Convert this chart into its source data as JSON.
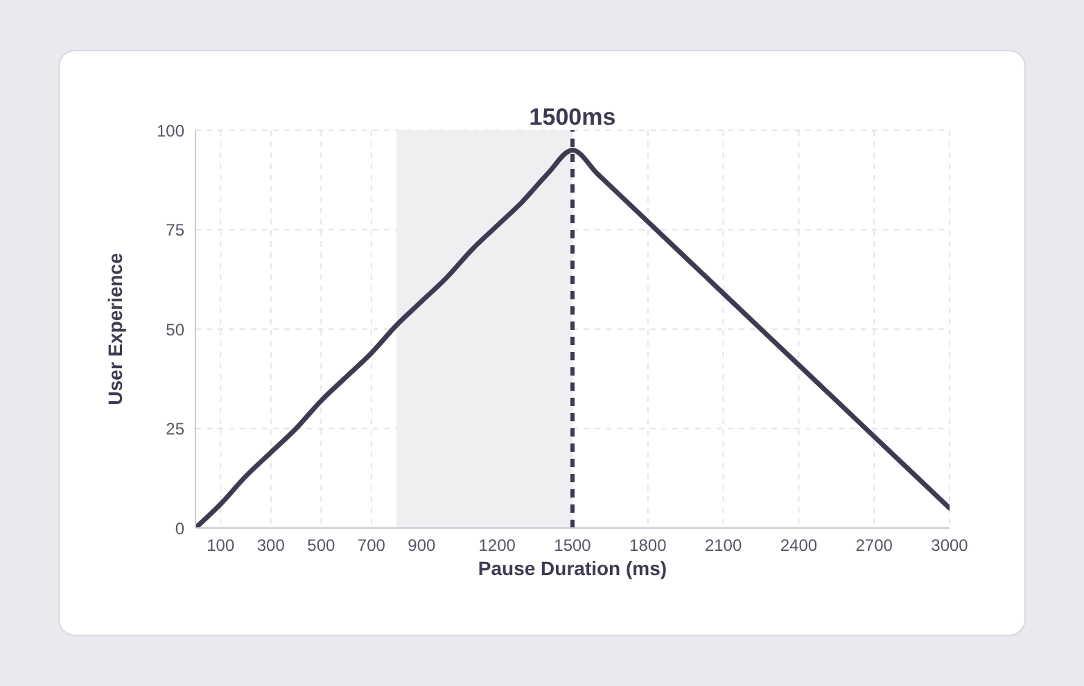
{
  "chart_data": {
    "type": "line",
    "xlabel": "Pause Duration (ms)",
    "ylabel": "User Experience",
    "x": [
      0,
      100,
      200,
      300,
      400,
      500,
      600,
      700,
      800,
      900,
      1000,
      1100,
      1200,
      1300,
      1400,
      1500,
      1600,
      1800,
      2100,
      2400,
      2700,
      3000
    ],
    "series": [
      {
        "color": "#3f3a52",
        "values": [
          0,
          6,
          13,
          19,
          25,
          32,
          38,
          44,
          51,
          57,
          63,
          70,
          76,
          82,
          89,
          95,
          89,
          77,
          59,
          41,
          23,
          5
        ]
      }
    ],
    "xlim": [
      0,
      3000
    ],
    "xticks": [
      100,
      300,
      500,
      700,
      900,
      1200,
      1500,
      1800,
      2100,
      2400,
      2700,
      3000
    ],
    "ylim": [
      0,
      100
    ],
    "yticks": [
      0,
      25,
      50,
      75,
      100
    ],
    "grid": true,
    "marker": "none",
    "line_style": "solid",
    "ref_lines": [
      {
        "axis": "x",
        "value": 1500,
        "label": "1500ms",
        "color": "#3f3a52",
        "line_style": "dashed"
      }
    ],
    "bands": [
      {
        "axis": "x",
        "from": 800,
        "to": 1500,
        "color": "#efeff2"
      }
    ]
  }
}
